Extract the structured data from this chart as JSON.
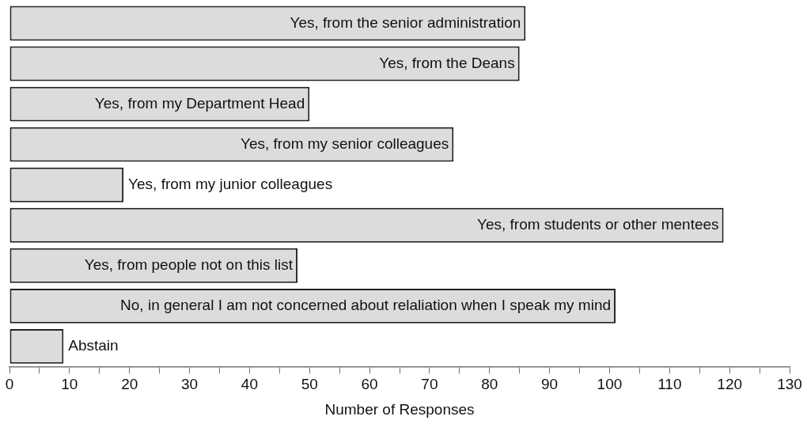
{
  "chart_data": {
    "type": "bar",
    "orientation": "horizontal",
    "xlabel": "Number of Responses",
    "categories": [
      "Yes, from the senior administration",
      "Yes, from the Deans",
      "Yes, from my Department Head",
      "Yes, from my senior colleagues",
      "Yes, from my junior colleagues",
      "Yes, from students or other mentees",
      "Yes, from people not on this list",
      "No, in general I am not concerned about relaliation when I speak my mind",
      "Abstain"
    ],
    "values": [
      86,
      85,
      50,
      74,
      19,
      119,
      48,
      101,
      9
    ],
    "color": "#dcdcdc",
    "xlim": [
      0,
      130
    ],
    "xticks": [
      0,
      {
        "value": 5,
        "label": null
      },
      10,
      {
        "value": 15,
        "label": null
      },
      20,
      {
        "value": 25,
        "label": null
      },
      30,
      {
        "value": 35,
        "label": null
      },
      40,
      {
        "value": 45,
        "label": null
      },
      50,
      {
        "value": 55,
        "label": null
      },
      60,
      {
        "value": 65,
        "label": null
      },
      70,
      {
        "value": 75,
        "label": null
      },
      80,
      {
        "value": 85,
        "label": null
      },
      90,
      {
        "value": 95,
        "label": null
      },
      100,
      {
        "value": 105,
        "label": null
      },
      110,
      {
        "value": 115,
        "label": null
      },
      120,
      {
        "value": 125,
        "label": null
      },
      130
    ],
    "tick_labels": "x",
    "grid": false,
    "legend": false
  }
}
